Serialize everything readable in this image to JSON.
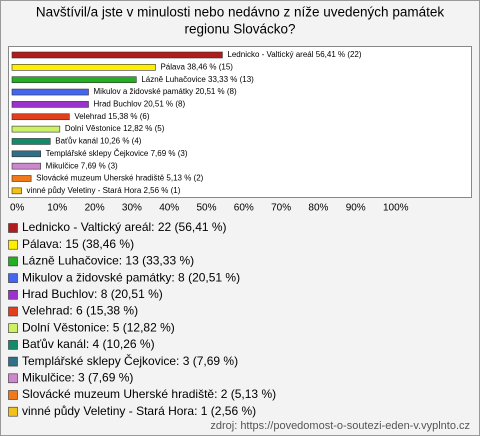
{
  "chart_data": {
    "type": "bar",
    "orientation": "horizontal",
    "title": [
      "Navštívil/a jste v minulosti nebo nedávno z níže uvedených památek",
      "regionu Slovácko?"
    ],
    "categories": [
      "Lednicko - Valtický areál",
      "Pálava",
      "Lázně Luhačovice",
      "Mikulov a židovské památky",
      "Hrad Buchlov",
      "Velehrad",
      "Dolní Věstonice",
      "Baťův kanál",
      "Templářské sklepy Čejkovice",
      "Mikulčice",
      "Slovácké muzeum Uherské hradiště",
      "vinné půdy Veletiny - Stará Hora"
    ],
    "values": [
      56.41,
      38.46,
      33.33,
      20.51,
      20.51,
      15.38,
      12.82,
      10.26,
      7.69,
      7.69,
      5.13,
      2.56
    ],
    "value_labels": [
      "Lednicko - Valtický areál 56,41 % (22)",
      "Pálava 38,46 % (15)",
      "Lázně Luhačovice 33,33 % (13)",
      "Mikulov a židovské památky 20,51 % (8)",
      "Hrad Buchlov 20,51 % (8)",
      "Velehrad 15,38 % (6)",
      "Dolní Věstonice 12,82 % (5)",
      "Baťův kanál 10,26 % (4)",
      "Templářské sklepy Čejkovice 7,69 % (3)",
      "Mikulčice 7,69 % (3)",
      "Slovácké muzeum Uherské hradiště 5,13 % (2)",
      "vinné půdy Veletiny - Stará Hora 2,56 % (1)"
    ],
    "legend": [
      "Lednicko - Valtický areál: 22 (56,41 %)",
      "Pálava: 15 (38,46 %)",
      "Lázně Luhačovice: 13 (33,33 %)",
      "Mikulov a židovské památky: 8 (20,51 %)",
      "Hrad Buchlov: 8 (20,51 %)",
      "Velehrad: 6 (15,38 %)",
      "Dolní Věstonice: 5 (12,82 %)",
      "Baťův kanál: 4 (10,26 %)",
      "Templářské sklepy Čejkovice: 3 (7,69 %)",
      "Mikulčice: 3 (7,69 %)",
      "Slovácké muzeum Uherské hradiště: 2 (5,13 %)",
      "vinné půdy Veletiny - Stará Hora: 1 (2,56 %)"
    ],
    "colors": [
      "#b01c1c",
      "#ffee00",
      "#22b022",
      "#4466ee",
      "#9933cc",
      "#e2401c",
      "#ccf066",
      "#138a6a",
      "#2e6f8a",
      "#cc88cc",
      "#f07a1a",
      "#f2c21a"
    ],
    "xlim": [
      0,
      100
    ],
    "xticks": [
      {
        "value": 0,
        "label": "0%"
      },
      {
        "value": 10,
        "label": "10%"
      },
      {
        "value": 20,
        "label": "20%"
      },
      {
        "value": 30,
        "label": "30%"
      },
      {
        "value": 40,
        "label": "40%"
      },
      {
        "value": 50,
        "label": "50%"
      },
      {
        "value": 60,
        "label": "60%"
      },
      {
        "value": 70,
        "label": "70%"
      },
      {
        "value": 80,
        "label": "80%"
      },
      {
        "value": 90,
        "label": "90%"
      },
      {
        "value": 100,
        "label": "100%"
      }
    ],
    "source": "zdroj: https://povedomost-o-soutezi-eden-v.vyplnto.cz"
  }
}
